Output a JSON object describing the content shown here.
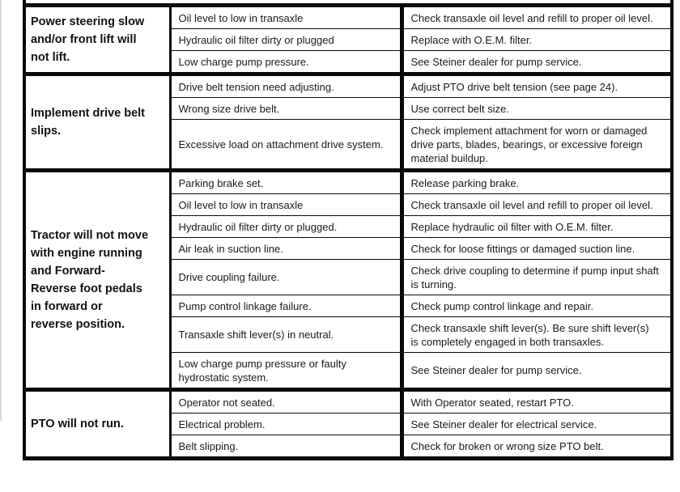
{
  "colors": {
    "ink": "#0a0a0a",
    "paper": "#ffffff",
    "text": "#1a1a1a"
  },
  "table": {
    "sections": [
      {
        "problem": "Power steering slow\nand/or front lift will\nnot lift.",
        "rows": [
          {
            "cause": "Oil level to low in transaxle",
            "remedy": "Check transaxle oil level and refill to proper oil level."
          },
          {
            "cause": "Hydraulic oil filter dirty or plugged",
            "remedy": "Replace with O.E.M. filter."
          },
          {
            "cause": "Low charge pump pressure.",
            "remedy": "See Steiner dealer for pump service."
          }
        ]
      },
      {
        "problem": "Implement drive belt\nslips.",
        "rows": [
          {
            "cause": "Drive belt tension need adjusting.",
            "remedy": "Adjust PTO drive belt tension (see page 24)."
          },
          {
            "cause": "Wrong size drive belt.",
            "remedy": "Use correct belt size."
          },
          {
            "cause": "Excessive load on attachment drive system.",
            "remedy": "Check implement attachment for worn or damaged drive parts, blades, bearings, or excessive foreign material buildup."
          }
        ]
      },
      {
        "problem": "Tractor will not move\nwith engine running\nand Forward-\nReverse foot pedals\nin forward or\nreverse position.",
        "rows": [
          {
            "cause": "Parking brake set.",
            "remedy": "Release parking brake."
          },
          {
            "cause": "Oil level to low in transaxle",
            "remedy": "Check transaxle oil level and refill to proper oil level."
          },
          {
            "cause": "Hydraulic oil filter dirty or plugged.",
            "remedy": "Replace hydraulic oil filter with O.E.M. filter."
          },
          {
            "cause": "Air leak in suction line.",
            "remedy": "Check for loose fittings or damaged suction line."
          },
          {
            "cause": "Drive coupling failure.",
            "remedy": "Check drive coupling to determine if pump input shaft is turning."
          },
          {
            "cause": "Pump control linkage failure.",
            "remedy": "Check pump control linkage and repair."
          },
          {
            "cause": "Transaxle shift lever(s) in neutral.",
            "remedy": "Check transaxle shift lever(s). Be sure shift lever(s) is completely engaged in both transaxles."
          },
          {
            "cause": "Low charge pump pressure or faulty hydrostatic system.",
            "remedy": "See Steiner dealer for pump service."
          }
        ]
      },
      {
        "problem": "PTO will not run.",
        "rows": [
          {
            "cause": "Operator not seated.",
            "remedy": "With Operator seated, restart PTO."
          },
          {
            "cause": "Electrical problem.",
            "remedy": "See Steiner dealer for electrical service."
          },
          {
            "cause": "Belt slipping.",
            "remedy": "Check for broken or wrong size PTO belt."
          }
        ]
      }
    ]
  }
}
